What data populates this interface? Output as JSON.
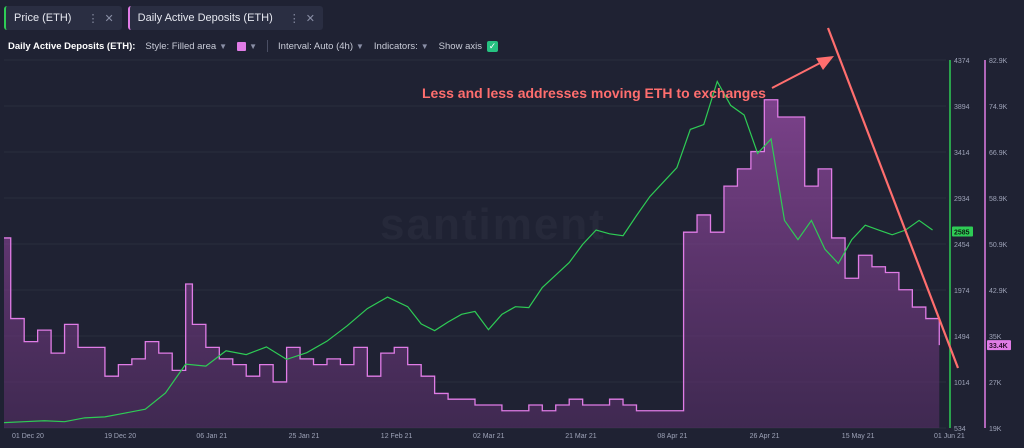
{
  "tabs": [
    {
      "label": "Price (ETH)",
      "color": "#2ecc55"
    },
    {
      "label": "Daily Active Deposits (ETH)",
      "color": "#e07ce6"
    }
  ],
  "toolbar": {
    "metric_label": "Daily Active Deposits (ETH):",
    "style_label": "Style: Filled area",
    "interval_label": "Interval: Auto (4h)",
    "indicators_label": "Indicators:",
    "show_axis_label": "Show axis",
    "show_axis_checked": true,
    "swatch_color": "#e07ce6"
  },
  "watermark": "santiment",
  "annotation": "Less and less addresses moving ETH to exchanges",
  "chart_data": {
    "type": "line",
    "x_ticks": [
      "01 Dec 20",
      "19 Dec 20",
      "06 Jan 21",
      "25 Jan 21",
      "12 Feb 21",
      "02 Mar 21",
      "21 Mar 21",
      "08 Apr 21",
      "26 Apr 21",
      "15 May 21",
      "01 Jun 21"
    ],
    "y_ticks_price": [
      "4374",
      "3894",
      "3414",
      "2934",
      "2454",
      "1974",
      "1494",
      "1014",
      "534"
    ],
    "y_ticks_deposits": [
      "82.9K",
      "74.9K",
      "66.9K",
      "58.9K",
      "50.9K",
      "42.9K",
      "35K",
      "27K",
      "19K"
    ],
    "current_price_label": "2585",
    "current_deposits_label": "33.4K",
    "series": [
      {
        "name": "Price (ETH)",
        "color": "#2ecc55",
        "ylim": [
          534,
          4374
        ],
        "points": [
          [
            0,
            590
          ],
          [
            3,
            600
          ],
          [
            6,
            610
          ],
          [
            9,
            600
          ],
          [
            12,
            640
          ],
          [
            15,
            650
          ],
          [
            18,
            690
          ],
          [
            21,
            730
          ],
          [
            24,
            900
          ],
          [
            27,
            1200
          ],
          [
            30,
            1180
          ],
          [
            33,
            1340
          ],
          [
            36,
            1300
          ],
          [
            39,
            1380
          ],
          [
            42,
            1250
          ],
          [
            45,
            1320
          ],
          [
            48,
            1440
          ],
          [
            51,
            1600
          ],
          [
            54,
            1780
          ],
          [
            57,
            1900
          ],
          [
            60,
            1800
          ],
          [
            62,
            1620
          ],
          [
            64,
            1550
          ],
          [
            66,
            1640
          ],
          [
            68,
            1720
          ],
          [
            70,
            1750
          ],
          [
            72,
            1560
          ],
          [
            74,
            1720
          ],
          [
            76,
            1800
          ],
          [
            78,
            1790
          ],
          [
            80,
            2000
          ],
          [
            82,
            2130
          ],
          [
            84,
            2260
          ],
          [
            86,
            2450
          ],
          [
            88,
            2600
          ],
          [
            90,
            2560
          ],
          [
            92,
            2540
          ],
          [
            94,
            2750
          ],
          [
            96,
            2950
          ],
          [
            98,
            3100
          ],
          [
            100,
            3250
          ],
          [
            102,
            3650
          ],
          [
            104,
            3700
          ],
          [
            106,
            4150
          ],
          [
            108,
            3900
          ],
          [
            110,
            3800
          ],
          [
            112,
            3400
          ],
          [
            114,
            3550
          ],
          [
            116,
            2700
          ],
          [
            118,
            2500
          ],
          [
            120,
            2700
          ],
          [
            122,
            2400
          ],
          [
            124,
            2250
          ],
          [
            126,
            2500
          ],
          [
            128,
            2650
          ],
          [
            130,
            2600
          ],
          [
            132,
            2550
          ],
          [
            134,
            2600
          ],
          [
            136,
            2700
          ],
          [
            138,
            2600
          ]
        ]
      },
      {
        "name": "Daily Active Deposits (ETH)",
        "color": "#e07ce6",
        "ylim": [
          19000,
          82900
        ],
        "points": [
          [
            0,
            52000
          ],
          [
            1,
            38000
          ],
          [
            3,
            34000
          ],
          [
            5,
            36000
          ],
          [
            7,
            32000
          ],
          [
            9,
            37000
          ],
          [
            11,
            33000
          ],
          [
            13,
            33000
          ],
          [
            15,
            28000
          ],
          [
            17,
            30000
          ],
          [
            19,
            31000
          ],
          [
            21,
            34000
          ],
          [
            23,
            32000
          ],
          [
            25,
            29000
          ],
          [
            27,
            44000
          ],
          [
            28,
            37000
          ],
          [
            30,
            33000
          ],
          [
            32,
            31000
          ],
          [
            34,
            30000
          ],
          [
            36,
            28000
          ],
          [
            38,
            30000
          ],
          [
            40,
            27000
          ],
          [
            42,
            33000
          ],
          [
            44,
            31000
          ],
          [
            46,
            30000
          ],
          [
            48,
            31000
          ],
          [
            50,
            30000
          ],
          [
            52,
            33000
          ],
          [
            54,
            28000
          ],
          [
            56,
            32000
          ],
          [
            58,
            33000
          ],
          [
            60,
            30000
          ],
          [
            62,
            28000
          ],
          [
            64,
            25000
          ],
          [
            66,
            24000
          ],
          [
            68,
            24000
          ],
          [
            70,
            23000
          ],
          [
            72,
            23000
          ],
          [
            74,
            22000
          ],
          [
            76,
            22000
          ],
          [
            78,
            23000
          ],
          [
            80,
            22000
          ],
          [
            82,
            23000
          ],
          [
            84,
            24000
          ],
          [
            86,
            23000
          ],
          [
            88,
            23000
          ],
          [
            90,
            24000
          ],
          [
            92,
            23000
          ],
          [
            94,
            22000
          ],
          [
            96,
            22000
          ],
          [
            98,
            22000
          ],
          [
            100,
            22000
          ],
          [
            101,
            53000
          ],
          [
            103,
            56000
          ],
          [
            105,
            53000
          ],
          [
            107,
            61000
          ],
          [
            109,
            64000
          ],
          [
            111,
            67000
          ],
          [
            113,
            76000
          ],
          [
            115,
            73000
          ],
          [
            117,
            73000
          ],
          [
            119,
            61000
          ],
          [
            121,
            64000
          ],
          [
            123,
            52000
          ],
          [
            125,
            45000
          ],
          [
            127,
            49000
          ],
          [
            129,
            47000
          ],
          [
            131,
            46000
          ],
          [
            133,
            43000
          ],
          [
            135,
            40000
          ],
          [
            137,
            38000
          ],
          [
            139,
            33400
          ]
        ]
      }
    ]
  }
}
